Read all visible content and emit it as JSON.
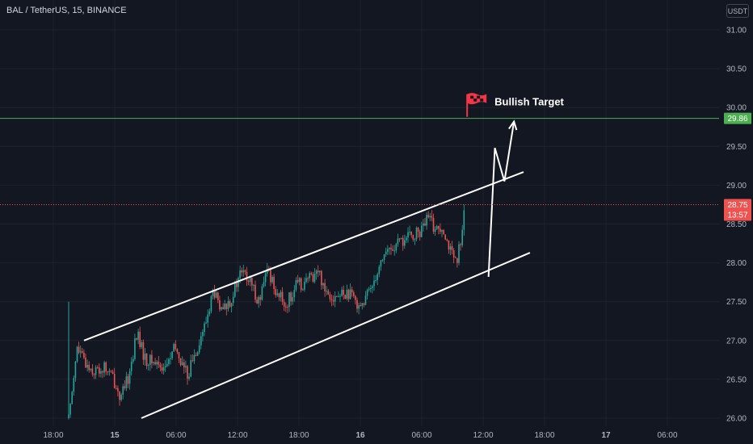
{
  "header": {
    "title": "BAL / TetherUS, 15, BINANCE",
    "currency": "USDT"
  },
  "colors": {
    "background": "#131722",
    "up": "#26a69a",
    "down": "#ef5350",
    "target_line": "#4caf50",
    "channel": "#ffffff",
    "flag": "#f23645"
  },
  "chart_data": {
    "type": "candlestick",
    "symbol": "BAL / TetherUS",
    "interval": "15",
    "exchange": "BINANCE",
    "y_ticks": [
      "31.00",
      "30.50",
      "30.00",
      "29.50",
      "29.00",
      "28.50",
      "28.00",
      "27.50",
      "27.00",
      "26.50",
      "26.00"
    ],
    "ylim": [
      25.97,
      31.3
    ],
    "x_ticks": [
      "18:00",
      "15",
      "06:00",
      "12:00",
      "18:00",
      "16",
      "06:00",
      "12:00",
      "18:00",
      "17",
      "06:00"
    ],
    "price_line": {
      "label": "29.86",
      "value": 29.86,
      "color": "#4caf50"
    },
    "last_price": {
      "value": 28.75,
      "label": "28.75",
      "countdown": "13:57"
    },
    "annotation": {
      "text": "Bullish Target",
      "icon": "checkered-flag-icon"
    },
    "channel": {
      "upper": [
        [
          0.0,
          27.0
        ],
        [
          27.6,
          29.17
        ]
      ],
      "lower": [
        [
          3.6,
          26.0
        ],
        [
          28.0,
          28.13
        ]
      ]
    },
    "projection": [
      [
        25.4,
        27.82
      ],
      [
        25.8,
        29.48
      ],
      [
        26.4,
        29.05
      ],
      [
        27.0,
        29.82
      ]
    ],
    "candle_anchors": [
      [
        0,
        26.0
      ],
      [
        0.4,
        26.9
      ],
      [
        0.8,
        26.72
      ],
      [
        1.3,
        26.6
      ],
      [
        1.8,
        26.65
      ],
      [
        2.2,
        26.52
      ],
      [
        2.6,
        26.25
      ],
      [
        3.0,
        26.55
      ],
      [
        3.4,
        27.1
      ],
      [
        3.8,
        26.75
      ],
      [
        4.3,
        26.72
      ],
      [
        4.8,
        26.65
      ],
      [
        5.3,
        26.9
      ],
      [
        5.9,
        26.55
      ],
      [
        6.3,
        26.85
      ],
      [
        6.8,
        27.2
      ],
      [
        7.2,
        27.65
      ],
      [
        7.6,
        27.35
      ],
      [
        8.1,
        27.55
      ],
      [
        8.6,
        27.9
      ],
      [
        9.0,
        27.75
      ],
      [
        9.5,
        27.5
      ],
      [
        9.9,
        27.92
      ],
      [
        10.4,
        27.6
      ],
      [
        10.8,
        27.45
      ],
      [
        11.3,
        27.7
      ],
      [
        11.8,
        27.75
      ],
      [
        12.4,
        27.9
      ],
      [
        12.8,
        27.65
      ],
      [
        13.3,
        27.55
      ],
      [
        13.8,
        27.62
      ],
      [
        14.3,
        27.5
      ],
      [
        14.7,
        27.48
      ],
      [
        15.2,
        27.8
      ],
      [
        15.7,
        28.12
      ],
      [
        16.2,
        28.2
      ],
      [
        16.6,
        28.28
      ],
      [
        17.1,
        28.35
      ],
      [
        17.5,
        28.4
      ],
      [
        17.9,
        28.58
      ],
      [
        18.3,
        28.42
      ],
      [
        18.6,
        28.5
      ],
      [
        19.0,
        28.15
      ],
      [
        19.3,
        27.95
      ],
      [
        19.5,
        28.3
      ],
      [
        19.7,
        28.75
      ]
    ],
    "candle_seed": 7,
    "grid": true,
    "axis": "right"
  }
}
